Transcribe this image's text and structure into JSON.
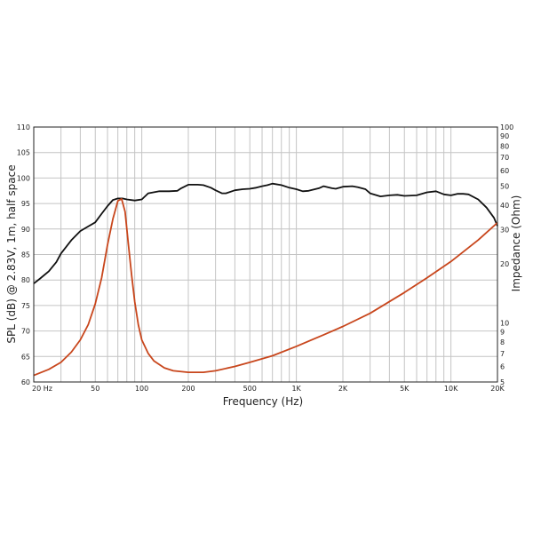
{
  "chart_data": {
    "type": "line",
    "xlabel": "Frequency (Hz)",
    "ylabel_left": "SPL (dB) @ 2.83V, 1m, half space",
    "ylabel_right": "Impedance (Ohm)",
    "x_scale": "log",
    "xlim": [
      20,
      20000
    ],
    "ylim_left": [
      60,
      110
    ],
    "ylim_right": [
      5,
      100
    ],
    "y_right_scale": "log",
    "grid": true,
    "x_tick_labels": [
      {
        "value": 20,
        "label": "20 Hz"
      },
      {
        "value": 50,
        "label": "50"
      },
      {
        "value": 100,
        "label": "100"
      },
      {
        "value": 200,
        "label": "200"
      },
      {
        "value": 500,
        "label": "500"
      },
      {
        "value": 1000,
        "label": "1K"
      },
      {
        "value": 2000,
        "label": "2K"
      },
      {
        "value": 5000,
        "label": "5K"
      },
      {
        "value": 10000,
        "label": "10K"
      },
      {
        "value": 20000,
        "label": "20K"
      }
    ],
    "y_left_ticks": [
      {
        "value": 60,
        "label": "60"
      },
      {
        "value": 65,
        "label": "65"
      },
      {
        "value": 70,
        "label": "70"
      },
      {
        "value": 75,
        "label": "75"
      },
      {
        "value": 80,
        "label": "80"
      },
      {
        "value": 85,
        "label": "85"
      },
      {
        "value": 90,
        "label": "90"
      },
      {
        "value": 95,
        "label": "95"
      },
      {
        "value": 100,
        "label": "100"
      },
      {
        "value": 105,
        "label": "105"
      },
      {
        "value": 110,
        "label": "110"
      }
    ],
    "y_right_ticks": [
      {
        "value": 5,
        "label": "5"
      },
      {
        "value": 6,
        "label": "6"
      },
      {
        "value": 7,
        "label": "7"
      },
      {
        "value": 8,
        "label": "8"
      },
      {
        "value": 9,
        "label": "9"
      },
      {
        "value": 10,
        "label": "10"
      },
      {
        "value": 20,
        "label": "20"
      },
      {
        "value": 30,
        "label": "30"
      },
      {
        "value": 40,
        "label": "40"
      },
      {
        "value": 50,
        "label": "50"
      },
      {
        "value": 60,
        "label": "60"
      },
      {
        "value": 70,
        "label": "70"
      },
      {
        "value": 80,
        "label": "80"
      },
      {
        "value": 90,
        "label": "90"
      },
      {
        "value": 100,
        "label": "100"
      }
    ],
    "series": [
      {
        "axis": "left",
        "color": "#111111",
        "x": [
          20,
          22,
          25,
          28,
          30,
          35,
          40,
          45,
          50,
          55,
          60,
          65,
          70,
          75,
          80,
          90,
          100,
          110,
          130,
          150,
          170,
          180,
          200,
          230,
          250,
          280,
          300,
          330,
          350,
          400,
          450,
          500,
          550,
          600,
          650,
          700,
          800,
          900,
          1000,
          1100,
          1200,
          1400,
          1500,
          1700,
          1800,
          2000,
          2300,
          2500,
          2800,
          3000,
          3500,
          4000,
          4500,
          5000,
          6000,
          7000,
          8000,
          9000,
          10000,
          11000,
          12000,
          13000,
          15000,
          17000,
          19000,
          20000
        ],
        "values": [
          79.3,
          80.3,
          81.7,
          83.5,
          85.2,
          87.8,
          89.6,
          90.5,
          91.3,
          93.0,
          94.5,
          95.7,
          96.0,
          96.0,
          95.8,
          95.6,
          95.8,
          97.0,
          97.4,
          97.4,
          97.5,
          98.0,
          98.7,
          98.7,
          98.6,
          98.1,
          97.6,
          97.0,
          97.0,
          97.6,
          97.8,
          97.9,
          98.1,
          98.4,
          98.6,
          98.9,
          98.6,
          98.1,
          97.8,
          97.4,
          97.5,
          98.0,
          98.4,
          98.0,
          97.9,
          98.3,
          98.4,
          98.2,
          97.8,
          97.0,
          96.4,
          96.6,
          96.7,
          96.5,
          96.6,
          97.2,
          97.4,
          96.8,
          96.6,
          96.9,
          96.9,
          96.8,
          95.8,
          94.2,
          92.2,
          90.6
        ]
      },
      {
        "axis": "right",
        "color": "#c8461c",
        "x": [
          20,
          25,
          30,
          35,
          40,
          45,
          50,
          55,
          60,
          65,
          70,
          74,
          78,
          82,
          86,
          90,
          95,
          100,
          110,
          120,
          140,
          160,
          200,
          250,
          300,
          400,
          500,
          700,
          1000,
          1500,
          2000,
          3000,
          5000,
          7000,
          10000,
          15000,
          20000
        ],
        "values": [
          5.4,
          5.8,
          6.3,
          7.1,
          8.2,
          9.8,
          12.5,
          17.0,
          25.0,
          34.0,
          42.0,
          43.0,
          37.0,
          25.0,
          17.5,
          12.8,
          9.8,
          8.2,
          7.0,
          6.4,
          5.9,
          5.7,
          5.6,
          5.6,
          5.7,
          6.0,
          6.3,
          6.8,
          7.6,
          8.7,
          9.6,
          11.2,
          14.3,
          17.0,
          20.6,
          26.5,
          32.5
        ]
      }
    ]
  }
}
